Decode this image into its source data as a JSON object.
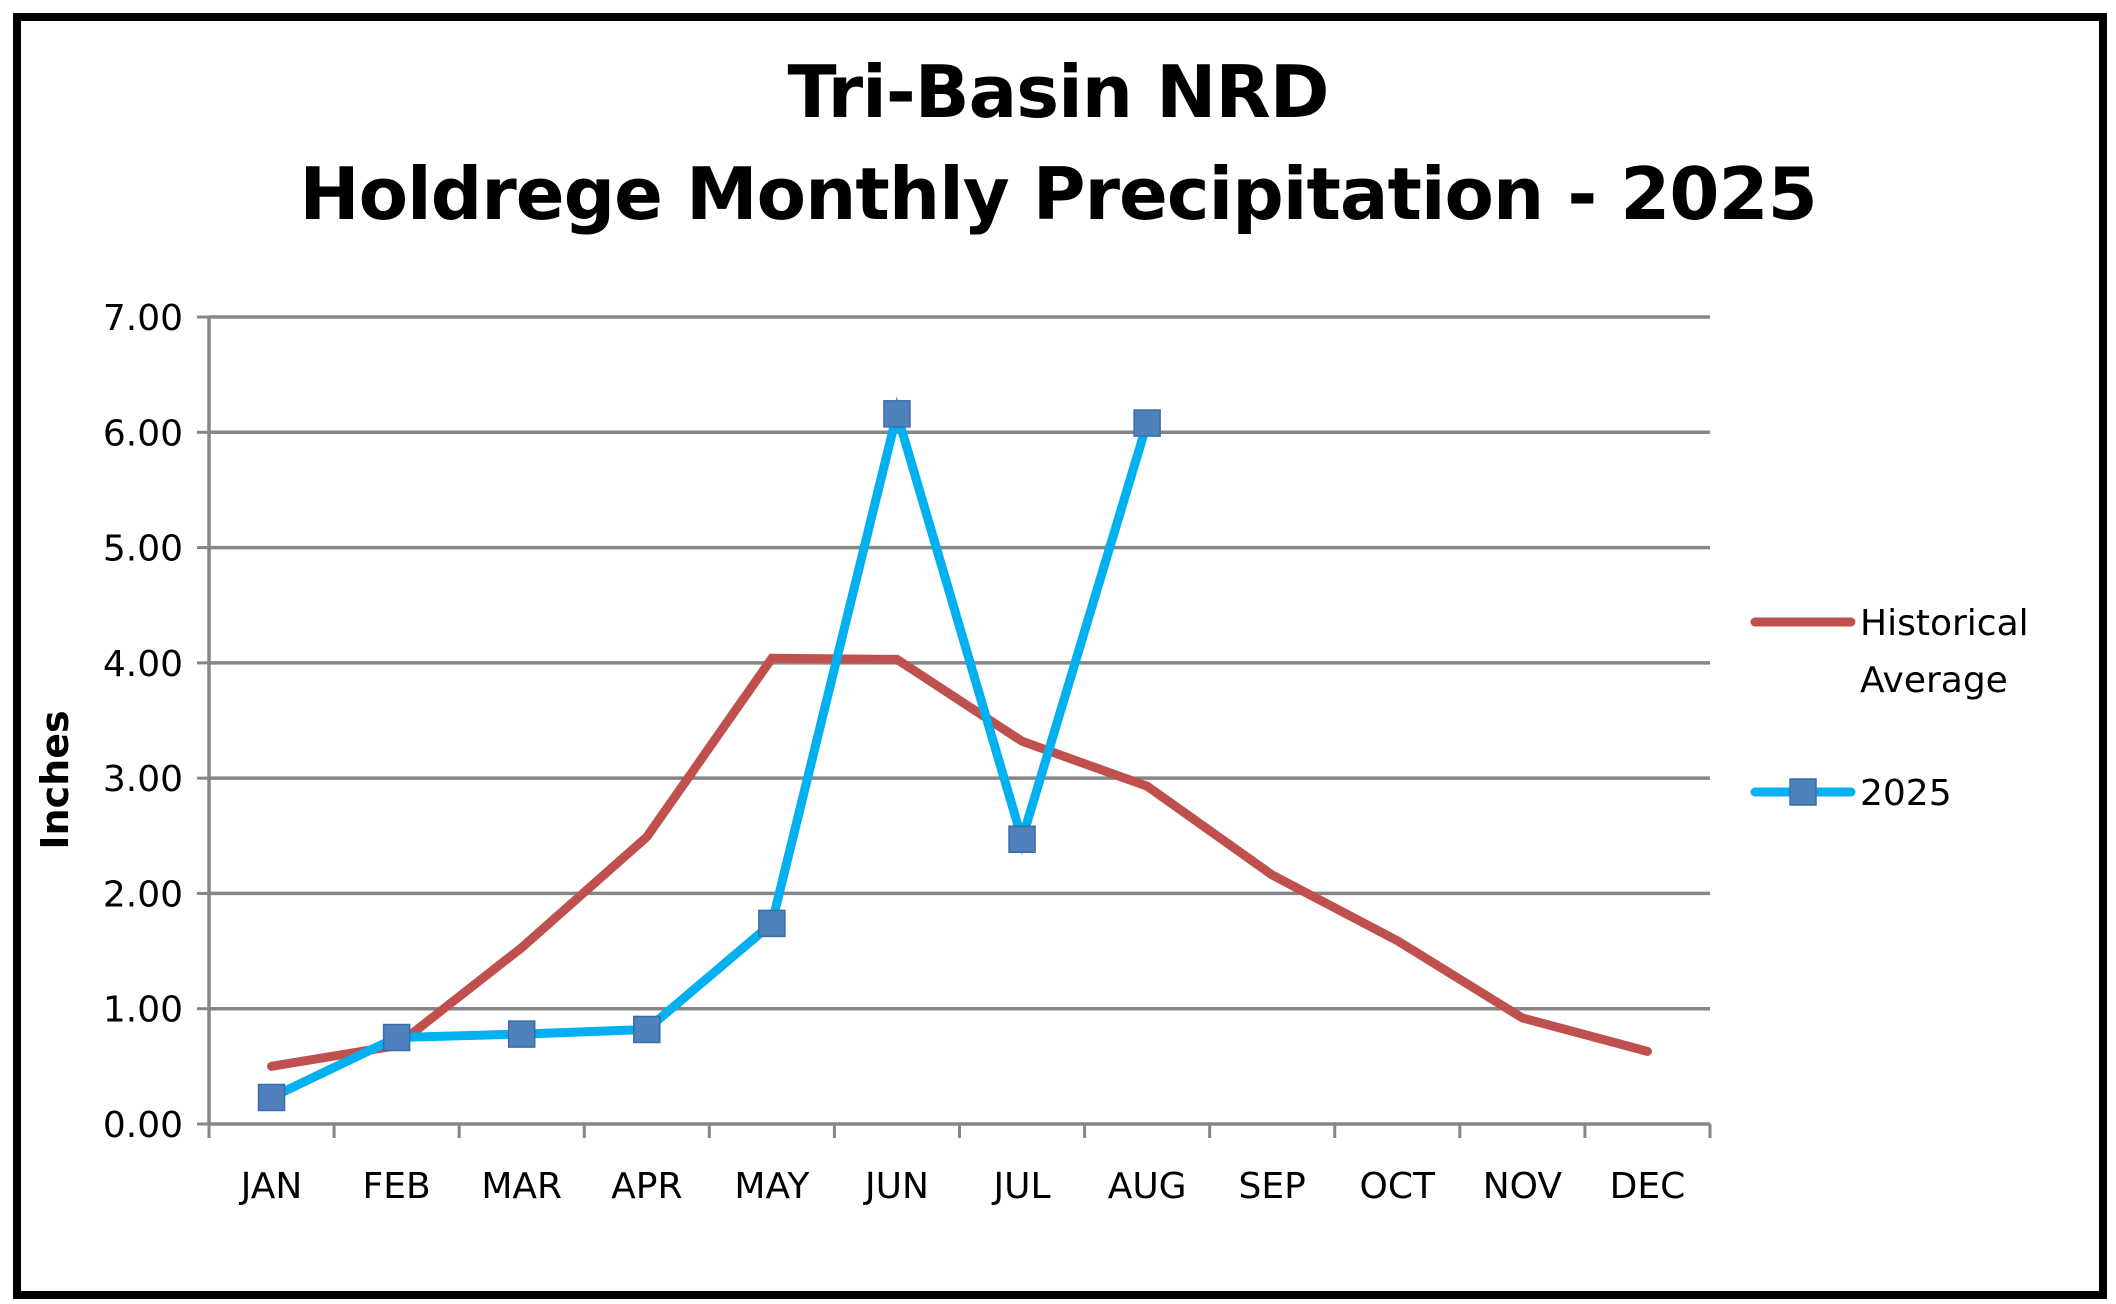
{
  "chart_data": {
    "type": "line",
    "title": "Tri-Basin NRD",
    "subtitle": "Holdrege Monthly Precipitation - 2025",
    "xlabel": "",
    "ylabel": "Inches",
    "ylim": [
      0,
      7
    ],
    "yticks": [
      "0.00",
      "1.00",
      "2.00",
      "3.00",
      "4.00",
      "5.00",
      "6.00",
      "7.00"
    ],
    "categories": [
      "JAN",
      "FEB",
      "MAR",
      "APR",
      "MAY",
      "JUN",
      "JUL",
      "AUG",
      "SEP",
      "OCT",
      "NOV",
      "DEC"
    ],
    "grid": "horizontal",
    "legend_position": "right",
    "series": [
      {
        "name": "Historical Average",
        "legend_lines": [
          "Historical",
          "Average"
        ],
        "color": "#C0504D",
        "marker": "none",
        "values": [
          0.5,
          0.68,
          1.53,
          2.49,
          4.04,
          4.03,
          3.32,
          2.93,
          2.16,
          1.59,
          0.92,
          0.63
        ]
      },
      {
        "name": "2025",
        "legend_lines": [
          "2025"
        ],
        "color": "#00B0F0",
        "marker": "square",
        "marker_color": "#4F81BD",
        "values": [
          0.23,
          0.75,
          0.78,
          0.82,
          1.74,
          6.16,
          2.47,
          6.08,
          null,
          null,
          null,
          null
        ]
      }
    ]
  }
}
